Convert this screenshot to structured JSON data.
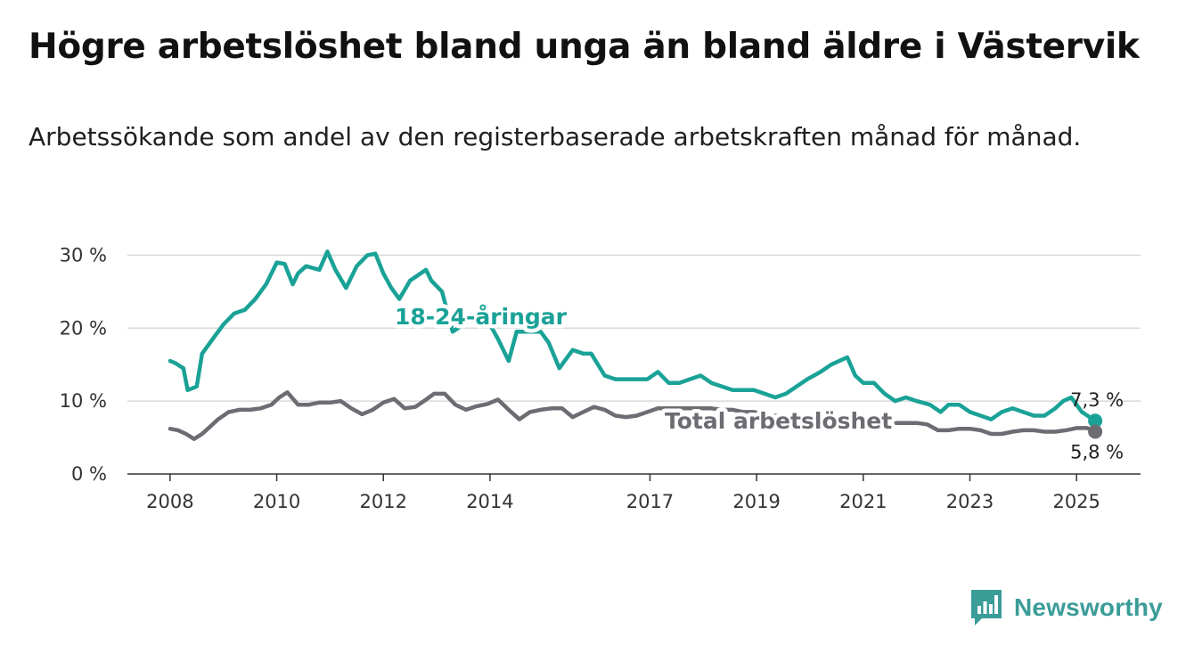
{
  "title": "Högre arbetslöshet bland unga än bland äldre i Västervik",
  "subtitle": "Arbetssökande som andel av den registerbaserade arbetskraften månad för månad.",
  "brand": {
    "name": "Newsworthy",
    "color": "#3b9c98"
  },
  "chart_data": {
    "type": "line",
    "y_ticks": [
      "0 %",
      "10 %",
      "20 %",
      "30 %"
    ],
    "y_tick_values": [
      0,
      10,
      20,
      30
    ],
    "x_ticks": [
      "2008",
      "2010",
      "2012",
      "2014",
      "2017",
      "2019",
      "2021",
      "2023",
      "2025"
    ],
    "x_tick_values": [
      2008,
      2010,
      2012,
      2014,
      2017,
      2019,
      2021,
      2023,
      2025
    ],
    "ylim": [
      0,
      32
    ],
    "xlim": [
      2007.2,
      2026.2
    ],
    "grid": true,
    "series": [
      {
        "name": "18-24-åringar",
        "color": "#1aa297",
        "end_label": "7,3 %",
        "x": [
          2008.0,
          2008.1,
          2008.25,
          2008.33,
          2008.5,
          2008.6,
          2008.8,
          2009.0,
          2009.2,
          2009.4,
          2009.6,
          2009.8,
          2010.0,
          2010.15,
          2010.3,
          2010.4,
          2010.55,
          2010.8,
          2010.95,
          2011.1,
          2011.3,
          2011.5,
          2011.7,
          2011.85,
          2012.0,
          2012.15,
          2012.3,
          2012.5,
          2012.6,
          2012.8,
          2012.9,
          2013.1,
          2013.3,
          2013.4,
          2013.6,
          2013.85,
          2014.0,
          2014.15,
          2014.35,
          2014.5,
          2014.65,
          2014.8,
          2014.95,
          2015.1,
          2015.3,
          2015.55,
          2015.75,
          2015.9,
          2016.15,
          2016.35,
          2016.55,
          2016.75,
          2016.95,
          2017.15,
          2017.35,
          2017.55,
          2017.75,
          2017.95,
          2018.15,
          2018.35,
          2018.55,
          2018.75,
          2018.95,
          2019.15,
          2019.35,
          2019.55,
          2019.75,
          2019.95,
          2020.2,
          2020.4,
          2020.55,
          2020.7,
          2020.85,
          2021.0,
          2021.2,
          2021.4,
          2021.6,
          2021.8,
          2022.0,
          2022.25,
          2022.45,
          2022.6,
          2022.8,
          2023.0,
          2023.2,
          2023.4,
          2023.6,
          2023.8,
          2024.0,
          2024.2,
          2024.4,
          2024.6,
          2024.75,
          2024.9,
          2025.1,
          2025.35
        ],
        "values": [
          15.5,
          15.2,
          14.5,
          11.5,
          12.0,
          16.5,
          18.5,
          20.5,
          22.0,
          22.5,
          24.0,
          26.0,
          29.0,
          28.8,
          26.0,
          27.5,
          28.5,
          28.0,
          30.5,
          28.0,
          25.5,
          28.5,
          30.0,
          30.2,
          27.5,
          25.5,
          24.0,
          26.5,
          27.0,
          28.0,
          26.5,
          25.0,
          19.5,
          20.0,
          21.0,
          22.0,
          20.5,
          18.5,
          15.5,
          19.5,
          19.5,
          19.5,
          19.5,
          18.0,
          14.5,
          17.0,
          16.5,
          16.5,
          13.5,
          13.0,
          13.0,
          13.0,
          13.0,
          14.0,
          12.5,
          12.5,
          13.0,
          13.5,
          12.5,
          12.0,
          11.5,
          11.5,
          11.5,
          11.0,
          10.5,
          11.0,
          12.0,
          13.0,
          14.0,
          15.0,
          15.5,
          16.0,
          13.5,
          12.5,
          12.5,
          11.0,
          10.0,
          10.5,
          10.0,
          9.5,
          8.5,
          9.5,
          9.5,
          8.5,
          8.0,
          7.5,
          8.5,
          9.0,
          8.5,
          8.0,
          8.0,
          9.0,
          10.0,
          10.5,
          8.5,
          7.3
        ]
      },
      {
        "name": "Total arbetslöshet",
        "color": "#6e6c73",
        "end_label": "5,8 %",
        "x": [
          2008.0,
          2008.15,
          2008.3,
          2008.45,
          2008.6,
          2008.75,
          2008.9,
          2009.1,
          2009.3,
          2009.5,
          2009.7,
          2009.9,
          2010.05,
          2010.2,
          2010.4,
          2010.6,
          2010.8,
          2011.0,
          2011.2,
          2011.4,
          2011.6,
          2011.8,
          2012.0,
          2012.2,
          2012.4,
          2012.6,
          2012.8,
          2012.95,
          2013.15,
          2013.35,
          2013.55,
          2013.75,
          2013.95,
          2014.15,
          2014.35,
          2014.55,
          2014.75,
          2014.95,
          2015.15,
          2015.35,
          2015.55,
          2015.75,
          2015.95,
          2016.15,
          2016.35,
          2016.55,
          2016.75,
          2016.95,
          2017.15,
          2017.35,
          2017.55,
          2017.75,
          2017.95,
          2018.15,
          2018.35,
          2018.55,
          2018.75,
          2018.95,
          2019.15,
          2019.35,
          2019.55,
          2019.75,
          2019.95,
          2020.2,
          2020.4,
          2020.6,
          2020.8,
          2021.0,
          2021.2,
          2021.4,
          2021.6,
          2021.8,
          2022.0,
          2022.2,
          2022.4,
          2022.6,
          2022.8,
          2023.0,
          2023.2,
          2023.4,
          2023.6,
          2023.8,
          2024.0,
          2024.2,
          2024.4,
          2024.6,
          2024.8,
          2025.0,
          2025.2,
          2025.35
        ],
        "values": [
          6.2,
          6.0,
          5.5,
          4.8,
          5.5,
          6.5,
          7.5,
          8.5,
          8.8,
          8.8,
          9.0,
          9.5,
          10.5,
          11.2,
          9.5,
          9.5,
          9.8,
          9.8,
          10.0,
          9.0,
          8.2,
          8.8,
          9.8,
          10.3,
          9.0,
          9.2,
          10.2,
          11.0,
          11.0,
          9.5,
          8.8,
          9.3,
          9.6,
          10.2,
          8.8,
          7.5,
          8.5,
          8.8,
          9.0,
          9.0,
          7.8,
          8.5,
          9.2,
          8.8,
          8.0,
          7.8,
          8.0,
          8.5,
          9.0,
          9.0,
          9.0,
          9.0,
          9.0,
          9.0,
          8.8,
          8.8,
          8.5,
          8.5,
          8.2,
          8.0,
          8.0,
          8.0,
          8.0,
          8.0,
          7.8,
          7.8,
          7.8,
          7.5,
          7.5,
          7.2,
          7.0,
          7.0,
          7.0,
          6.8,
          6.0,
          6.0,
          6.2,
          6.2,
          6.0,
          5.5,
          5.5,
          5.8,
          6.0,
          6.0,
          5.8,
          5.8,
          6.0,
          6.3,
          6.3,
          5.8
        ]
      }
    ]
  }
}
